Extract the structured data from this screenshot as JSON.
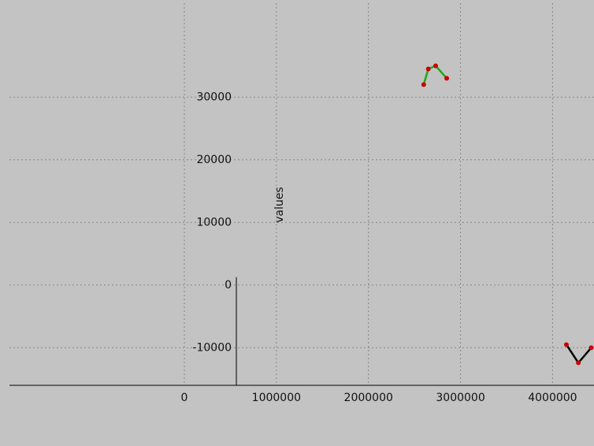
{
  "chart_data": {
    "type": "line",
    "y_label": "values",
    "series": [
      {
        "color": "#1aaa1a",
        "x": [
          2600000,
          2650000,
          2730000,
          2850000
        ],
        "values": [
          32000,
          34500,
          35000,
          33000
        ]
      },
      {
        "color": "#000000",
        "x": [
          4150000,
          4280000,
          4420000
        ],
        "values": [
          -9500,
          -12400,
          -10000
        ]
      }
    ],
    "marker_color": "#cc0000",
    "xlim": [
      -1900000,
      4450000
    ],
    "ylim": [
      -16000,
      45000
    ],
    "xticks": [
      0,
      1000000,
      2000000,
      3000000,
      4000000
    ],
    "yticks": [
      -10000,
      0,
      10000,
      20000,
      30000
    ],
    "grid": true
  }
}
